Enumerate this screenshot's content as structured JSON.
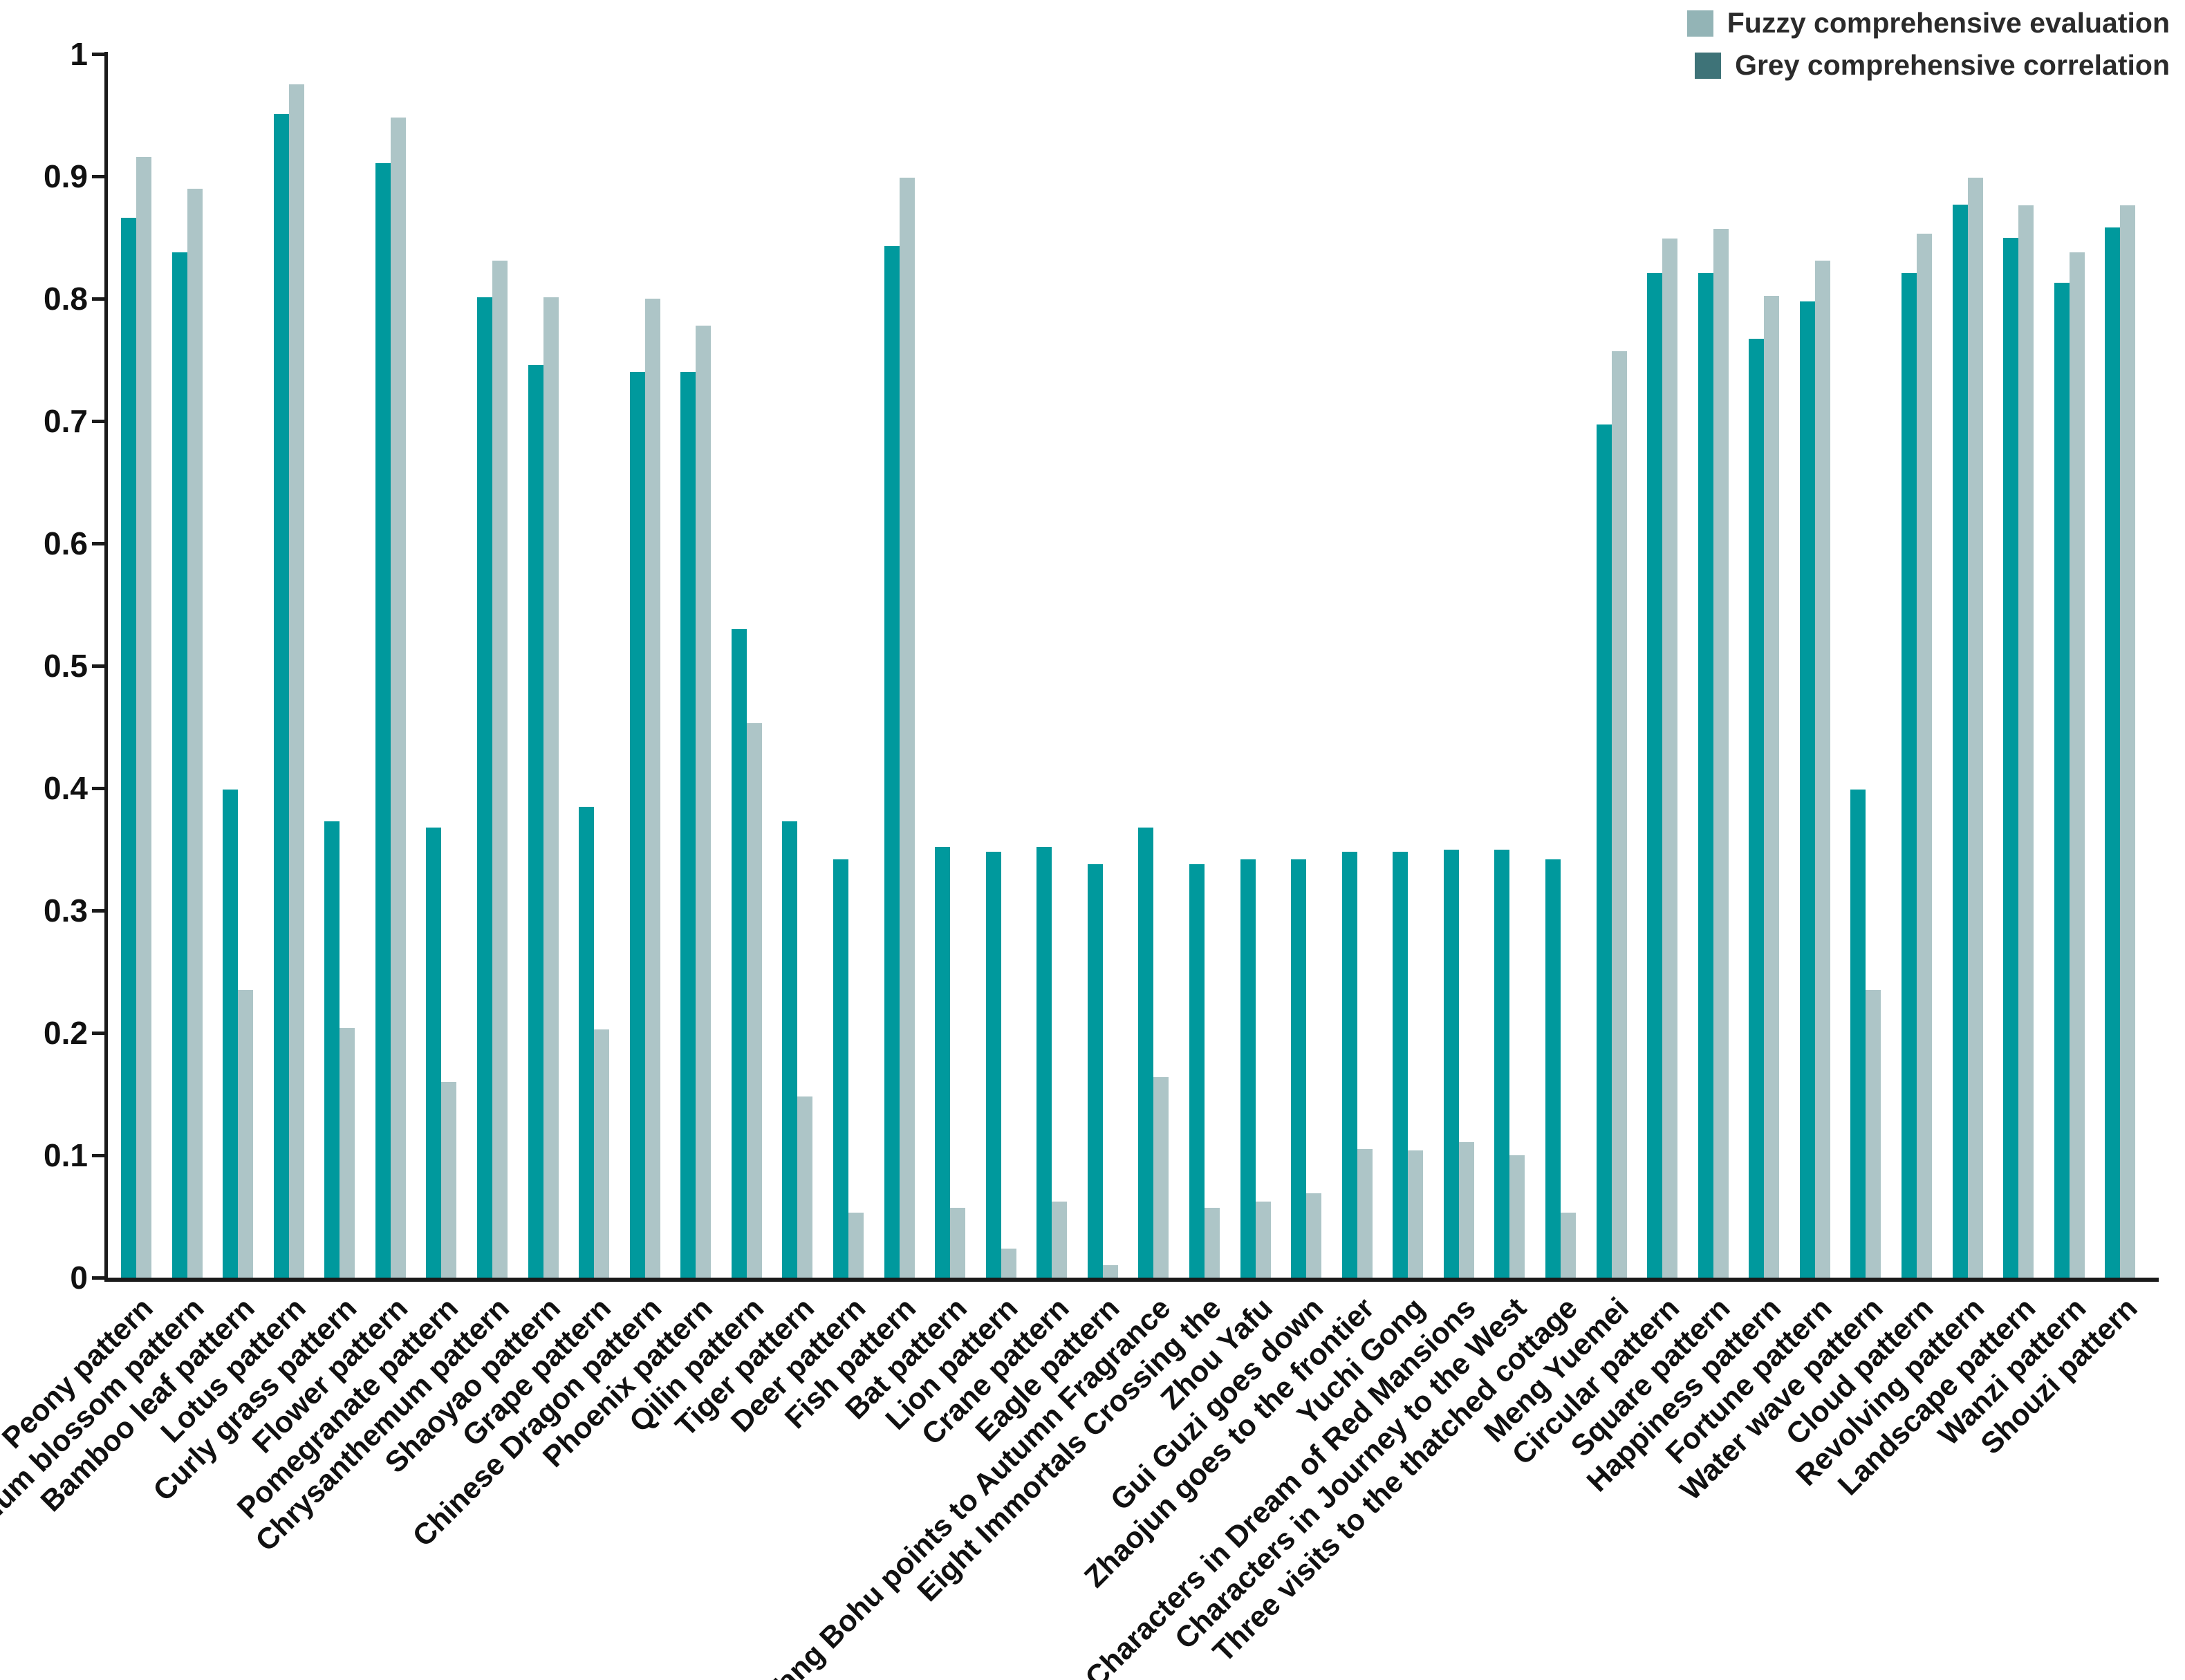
{
  "legend": {
    "position": "top-right",
    "items": [
      {
        "label": "Fuzzy comprehensive evaluation",
        "swatch_color": "#93b4b6"
      },
      {
        "label": "Grey comprehensive correlation",
        "swatch_color": "#3e7378"
      }
    ]
  },
  "chart_data": {
    "type": "bar",
    "title": "",
    "xlabel": "",
    "ylabel": "",
    "ylim": [
      0,
      1
    ],
    "yticks": [
      "0",
      "0.1",
      "0.2",
      "0.3",
      "0.4",
      "0.5",
      "0.6",
      "0.7",
      "0.8",
      "0.9",
      "1"
    ],
    "grid": false,
    "legend_position": "top-right",
    "categories": [
      "Peony pattern",
      "Plum blossom pattern",
      "Bamboo leaf pattern",
      "Lotus pattern",
      "Curly grass pattern",
      "Flower pattern",
      "Pomegranate pattern",
      "Chrysanthemum pattern",
      "Shaoyao pattern",
      "Grape pattern",
      "Chinese Dragon pattern",
      "Phoenix pattern",
      "Qilin pattern",
      "Tiger pattern",
      "Deer pattern",
      "Fish pattern",
      "Bat pattern",
      "Lion pattern",
      "Crane pattern",
      "Eagle pattern",
      "Tang Bohu points to Autumn Fragrance",
      "Eight Immortals Crossing the",
      "Zhou Yafu",
      "Gui Guzi goes down",
      "Zhaojun goes to the frontier",
      "Yuchi Gong",
      "Characters in Dream of Red Mansions",
      "Characters in Journey to the West",
      "Three visits to the thatched cottage",
      "Meng Yuemei",
      "Circular pattern",
      "Square pattern",
      "Happiness pattern",
      "Fortune pattern",
      "Water wave pattern",
      "Cloud pattern",
      "Revolving pattern",
      "Landscape pattern",
      "Wanzi pattern",
      "Shouzi pattern"
    ],
    "series": [
      {
        "name": "Fuzzy comprehensive evaluation",
        "bar_color": "#adc5c7",
        "swatch_color": "#93b4b6",
        "values": [
          0.916,
          0.89,
          0.235,
          0.975,
          0.204,
          0.948,
          0.16,
          0.831,
          0.801,
          0.203,
          0.8,
          0.778,
          0.453,
          0.148,
          0.053,
          0.899,
          0.057,
          0.024,
          0.062,
          0.01,
          0.164,
          0.057,
          0.062,
          0.069,
          0.105,
          0.104,
          0.111,
          0.1,
          0.053,
          0.757,
          0.849,
          0.857,
          0.802,
          0.831,
          0.235,
          0.853,
          0.899,
          0.876,
          0.838,
          0.876
        ]
      },
      {
        "name": "Grey comprehensive correlation",
        "bar_color": "#00999d",
        "swatch_color": "#3e7378",
        "values": [
          0.866,
          0.838,
          0.399,
          0.951,
          0.373,
          0.911,
          0.368,
          0.801,
          0.746,
          0.385,
          0.74,
          0.74,
          0.53,
          0.373,
          0.342,
          0.843,
          0.352,
          0.348,
          0.352,
          0.338,
          0.368,
          0.338,
          0.342,
          0.342,
          0.348,
          0.348,
          0.35,
          0.35,
          0.342,
          0.697,
          0.821,
          0.821,
          0.767,
          0.798,
          0.399,
          0.821,
          0.877,
          0.85,
          0.813,
          0.858
        ]
      }
    ],
    "bar_draw_order": [
      1,
      0
    ]
  }
}
